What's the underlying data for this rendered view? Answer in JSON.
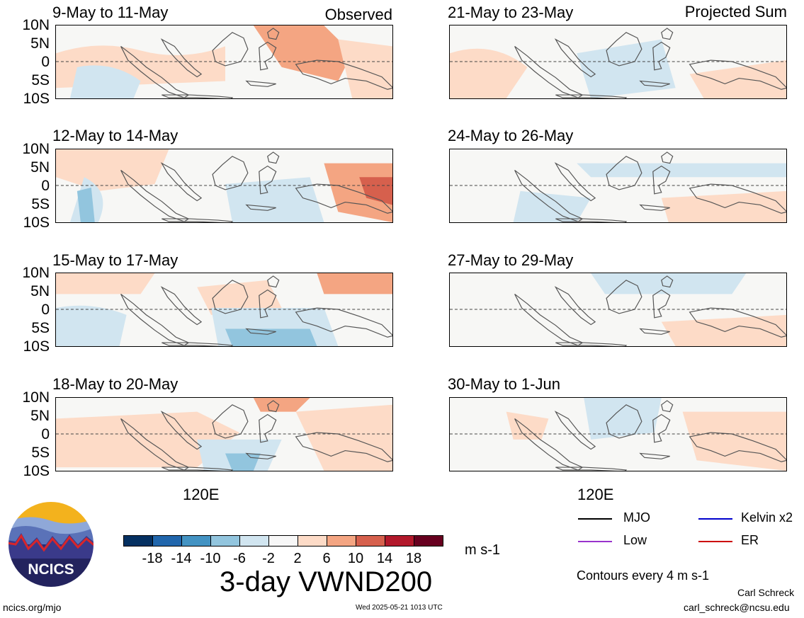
{
  "panels": {
    "observed_tag": "Observed",
    "projected_tag": "Projected Sum",
    "left": [
      {
        "title": "9-May to 11-May"
      },
      {
        "title": "12-May to 14-May"
      },
      {
        "title": "15-May to 17-May"
      },
      {
        "title": "18-May to 20-May"
      }
    ],
    "right": [
      {
        "title": "21-May to 23-May"
      },
      {
        "title": "24-May to 26-May"
      },
      {
        "title": "27-May to 29-May"
      },
      {
        "title": "30-May to 1-Jun"
      }
    ]
  },
  "axes": {
    "lat_ticks": [
      "10N",
      "5N",
      "0",
      "5S",
      "10S"
    ],
    "lon_tick": "120E"
  },
  "colorbar": {
    "labels": [
      "-18",
      "-14",
      "-10",
      "-6",
      "-2",
      "2",
      "6",
      "10",
      "14",
      "18"
    ],
    "colors": [
      "#053061",
      "#2166ac",
      "#4393c3",
      "#92c5de",
      "#d1e5f0",
      "#f7f7f7",
      "#fddbc7",
      "#f4a582",
      "#d6604d",
      "#b2182b",
      "#67001f"
    ],
    "units": "m s-1"
  },
  "title": "3-day VWND200",
  "legend": {
    "items": [
      {
        "label": "MJO",
        "color": "#000000"
      },
      {
        "label": "Kelvin x2",
        "color": "#0000cc"
      },
      {
        "label": "Low",
        "color": "#9933cc"
      },
      {
        "label": "ER",
        "color": "#cc0000"
      }
    ],
    "contours_note": "Contours every 4 m s-1"
  },
  "logo": {
    "text": "NCICS"
  },
  "footer": {
    "url": "ncics.org/mjo",
    "timestamp": "Wed 2025-05-21 1013 UTC",
    "author": "Carl Schreck",
    "email": "carl_schreck@ncsu.edu"
  }
}
